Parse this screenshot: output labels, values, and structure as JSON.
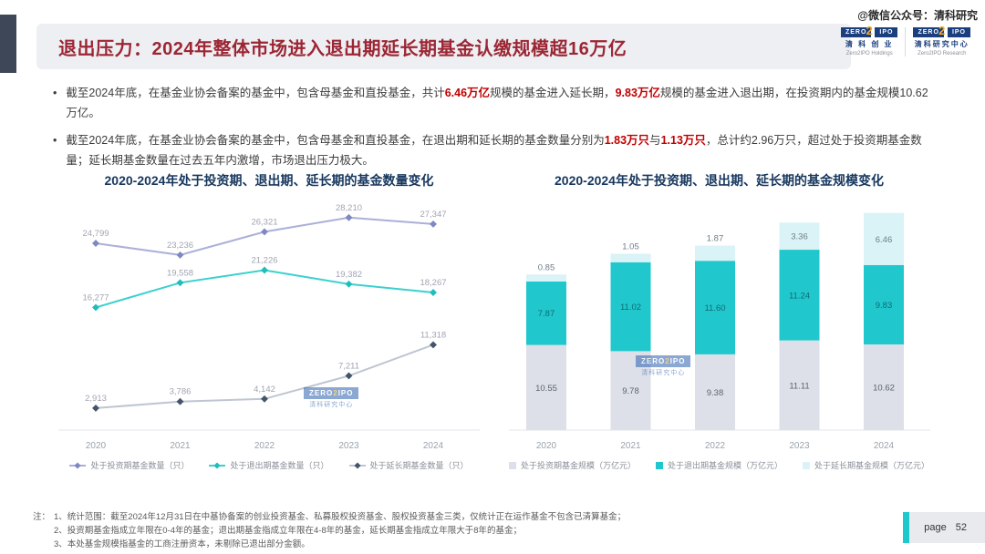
{
  "header": {
    "title": "退出压力：2024年整体市场进入退出期延长期基金认缴规模超16万亿",
    "social_handle": "@微信公众号：清科研究",
    "logos": [
      {
        "brand_left": "ZERO",
        "brand_digit": "2",
        "brand_right": "IPO",
        "cn": "清 科 创 业",
        "en": "Zero2IPO Holdings"
      },
      {
        "brand_left": "ZERO",
        "brand_digit": "2",
        "brand_right": "IPO",
        "cn": "清科研究中心",
        "en": "Zero2IPO Research"
      }
    ]
  },
  "bullets": [
    {
      "segments": [
        {
          "t": "截至2024年底，在基金业协会备案的基金中，包含母基金和直投基金，共计",
          "red": false
        },
        {
          "t": "6.46万亿",
          "red": true
        },
        {
          "t": "规模的基金进入延长期，",
          "red": false
        },
        {
          "t": "9.83万亿",
          "red": true
        },
        {
          "t": "规模的基金进入退出期，在投资期内的基金规模10.62万亿。",
          "red": false
        }
      ]
    },
    {
      "segments": [
        {
          "t": "截至2024年底，在基金业协会备案的基金中，包含母基金和直投基金，在退出期和延长期的基金数量分别为",
          "red": false
        },
        {
          "t": "1.83万只",
          "red": true
        },
        {
          "t": "与",
          "red": false
        },
        {
          "t": "1.13万只",
          "red": true
        },
        {
          "t": "，总计约2.96万只，超过处于投资期基金数量；延长期基金数量在过去五年内激增，市场退出压力极大。",
          "red": false
        }
      ]
    }
  ],
  "chart_data": [
    {
      "type": "line",
      "title": "2020-2024年处于投资期、退出期、延长期的基金数量变化",
      "categories": [
        "2020",
        "2021",
        "2022",
        "2023",
        "2024"
      ],
      "ylim": [
        0,
        30000
      ],
      "grid": false,
      "legend_position": "bottom",
      "series": [
        {
          "name": "处于投资期基金数量（只）",
          "color": "#aab0d8",
          "marker": "#7e88c2",
          "label_color": "#a1a5b3",
          "values": [
            24799,
            23236,
            26321,
            28210,
            27347
          ],
          "labels": [
            "24,799",
            "23,236",
            "26,321",
            "28,210",
            "27,347"
          ]
        },
        {
          "name": "处于退出期基金数量（只）",
          "color": "#3ad1ce",
          "marker": "#1fbdbd",
          "label_color": "#a1a5b3",
          "values": [
            16277,
            19558,
            21226,
            19382,
            18267
          ],
          "labels": [
            "16,277",
            "19,558",
            "21,226",
            "19,382",
            "18,267"
          ]
        },
        {
          "name": "处于延长期基金数量（只）",
          "color": "#bdc6d2",
          "marker": "#44546a",
          "label_color": "#a1a5b3",
          "values": [
            2913,
            3786,
            4142,
            7211,
            11318
          ],
          "labels": [
            "2,913",
            "3,786",
            "4,142",
            "7,211",
            "11,318"
          ]
        }
      ]
    },
    {
      "type": "stacked-bar",
      "title": "2020-2024年处于投资期、退出期、延长期的基金规模变化",
      "categories": [
        "2020",
        "2021",
        "2022",
        "2023",
        "2024"
      ],
      "ylim": [
        0,
        28
      ],
      "grid": false,
      "legend_position": "bottom",
      "series": [
        {
          "name": "处于投资期基金规模（万亿元）",
          "color": "#dde0e8",
          "label_color": "#5a6470",
          "values": [
            10.55,
            9.78,
            9.38,
            11.11,
            10.62
          ],
          "labels": [
            "10.55",
            "9.78",
            "9.38",
            "11.11",
            "10.62"
          ]
        },
        {
          "name": "处于退出期基金规模（万亿元）",
          "color": "#20c8cd",
          "label_color": "#0f6b74",
          "values": [
            7.87,
            11.02,
            11.6,
            11.24,
            9.83
          ],
          "labels": [
            "7.87",
            "11.02",
            "11.60",
            "11.24",
            "9.83"
          ]
        },
        {
          "name": "处于延长期基金规模（万亿元）",
          "color": "#d9f3f6",
          "label_color": "#6f7d88",
          "values": [
            0.85,
            1.05,
            1.87,
            3.36,
            6.46
          ],
          "labels": [
            "0.85",
            "1.05",
            "1.87",
            "3.36",
            "6.46"
          ]
        }
      ]
    }
  ],
  "watermark_stamp": {
    "line1_left": "ZERO",
    "line1_digit": "2",
    "line1_right": "IPO",
    "line2": "清科研究中心"
  },
  "footnotes": {
    "prefix": "注：",
    "items": [
      "1、统计范围：截至2024年12月31日在中基协备案的创业投资基金、私募股权投资基金、股权投资基金三类，仅统计正在运作基金不包含已清算基金；",
      "2、投资期基金指成立年限在0-4年的基金；退出期基金指成立年限在4-8年的基金，延长期基金指成立年限大于8年的基金；",
      "3、本处基金规模指基金的工商注册资本，未剔除已退出部分金额。"
    ]
  },
  "page": {
    "label": "page",
    "number": "52"
  },
  "colors": {
    "accent_teal": "#1ec9cd",
    "title_red": "#9c2633",
    "highlight_red": "#c00000",
    "navy": "#17375e",
    "bar_gray": "#dde0e8",
    "bar_teal": "#20c8cd",
    "bar_pale": "#d9f3f6"
  }
}
